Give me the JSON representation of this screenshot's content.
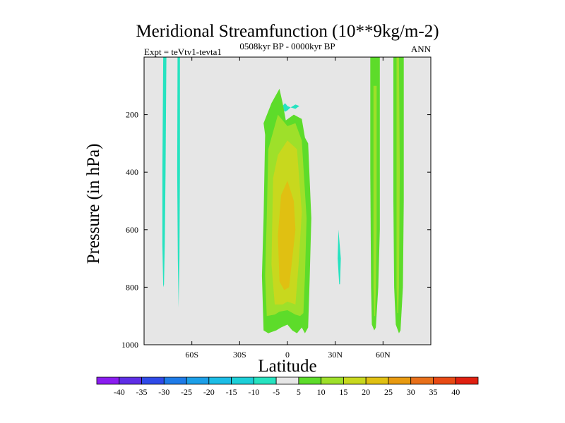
{
  "chart_data": {
    "type": "heatmap",
    "title": "Meridional Streamfunction (10**9kg/m-2)",
    "subtitle": "0508kyr BP - 0000kyr BP",
    "left_label": "Expt = teVtv1-tevta1",
    "right_label": "ANN",
    "xlabel": "Latitude",
    "ylabel": "Pressure (in hPa)",
    "xlim": [
      -90,
      90
    ],
    "ylim": [
      1000,
      0
    ],
    "x_ticks": [
      {
        "value": -60,
        "label": "60S"
      },
      {
        "value": -30,
        "label": "30S"
      },
      {
        "value": 0,
        "label": "0"
      },
      {
        "value": 30,
        "label": "30N"
      },
      {
        "value": 60,
        "label": "60N"
      }
    ],
    "y_ticks": [
      {
        "value": 200,
        "label": "200"
      },
      {
        "value": 400,
        "label": "400"
      },
      {
        "value": 600,
        "label": "600"
      },
      {
        "value": 800,
        "label": "800"
      },
      {
        "value": 1000,
        "label": "1000"
      }
    ],
    "background_color": "#e6e6e6",
    "colorbar": {
      "labels": [
        "-40",
        "-35",
        "-30",
        "-25",
        "-20",
        "-15",
        "-10",
        "-5",
        "5",
        "10",
        "15",
        "20",
        "25",
        "30",
        "35",
        "40"
      ],
      "colors": [
        "#8a1cf0",
        "#5e2ee6",
        "#2f4ae8",
        "#1e7be8",
        "#1c9fe8",
        "#1cbde6",
        "#1ccfd8",
        "#26e3c0",
        "#e6e6e6",
        "#5ddc2a",
        "#9ee02a",
        "#c8d81e",
        "#e0c012",
        "#e89a10",
        "#e8701a",
        "#e84a14",
        "#e02010"
      ]
    },
    "regions": [
      {
        "name": "negative-contour-60s-a",
        "level": -10,
        "color": "#26e3c0",
        "points": [
          [
            -78,
            0
          ],
          [
            -76,
            0
          ],
          [
            -76.5,
            400
          ],
          [
            -77,
            650
          ],
          [
            -77.5,
            790
          ],
          [
            -78,
            800
          ],
          [
            -78.5,
            650
          ],
          [
            -78.5,
            400
          ]
        ]
      },
      {
        "name": "negative-contour-60s-b",
        "level": -10,
        "color": "#26e3c0",
        "points": [
          [
            -69,
            0
          ],
          [
            -67.5,
            0
          ],
          [
            -67.5,
            400
          ],
          [
            -67.8,
            700
          ],
          [
            -68.3,
            870
          ],
          [
            -68.8,
            700
          ],
          [
            -69.2,
            400
          ]
        ]
      },
      {
        "name": "negative-contour-upper-blob",
        "level": -10,
        "color": "#26e3c0",
        "points": [
          [
            -3,
            170
          ],
          [
            -1.5,
            160
          ],
          [
            0,
            170
          ],
          [
            2,
            175
          ],
          [
            5,
            165
          ],
          [
            7.5,
            170
          ],
          [
            5,
            180
          ],
          [
            2,
            175
          ],
          [
            0,
            185
          ],
          [
            -1.5,
            190
          ],
          [
            -3,
            180
          ]
        ]
      },
      {
        "name": "negative-contour-30n",
        "level": -5,
        "color": "#26e3c0",
        "points": [
          [
            32,
            600
          ],
          [
            33.5,
            700
          ],
          [
            33,
            790
          ],
          [
            32.5,
            790
          ],
          [
            31.5,
            700
          ]
        ]
      },
      {
        "name": "positive-contour-5-tropics",
        "level": 5,
        "color": "#5ddc2a",
        "points": [
          [
            -15,
            230
          ],
          [
            -10,
            160
          ],
          [
            -5,
            110
          ],
          [
            -3,
            160
          ],
          [
            -1,
            220
          ],
          [
            4,
            200
          ],
          [
            9,
            215
          ],
          [
            11,
            280
          ],
          [
            13,
            300
          ],
          [
            15,
            560
          ],
          [
            14,
            760
          ],
          [
            13,
            940
          ],
          [
            11,
            960
          ],
          [
            9,
            940
          ],
          [
            6,
            960
          ],
          [
            3,
            950
          ],
          [
            0,
            930
          ],
          [
            -4,
            940
          ],
          [
            -7,
            950
          ],
          [
            -12,
            960
          ],
          [
            -15,
            950
          ],
          [
            -16,
            760
          ],
          [
            -15,
            560
          ],
          [
            -14,
            270
          ]
        ]
      },
      {
        "name": "positive-contour-10-tropics",
        "level": 10,
        "color": "#9ee02a",
        "points": [
          [
            -10,
            280
          ],
          [
            -6,
            200
          ],
          [
            0,
            240
          ],
          [
            5,
            230
          ],
          [
            9,
            290
          ],
          [
            12,
            560
          ],
          [
            11,
            760
          ],
          [
            10,
            890
          ],
          [
            8,
            900
          ],
          [
            5,
            895
          ],
          [
            0,
            880
          ],
          [
            -5,
            885
          ],
          [
            -8,
            895
          ],
          [
            -13,
            900
          ],
          [
            -14,
            760
          ],
          [
            -13,
            560
          ],
          [
            -12,
            320
          ]
        ]
      },
      {
        "name": "positive-contour-15-tropics",
        "level": 15,
        "color": "#c8d81e",
        "points": [
          [
            -6,
            340
          ],
          [
            0,
            290
          ],
          [
            6,
            320
          ],
          [
            9,
            540
          ],
          [
            7,
            720
          ],
          [
            5,
            860
          ],
          [
            0,
            850
          ],
          [
            -3,
            860
          ],
          [
            -8,
            860
          ],
          [
            -10,
            720
          ],
          [
            -9,
            420
          ]
        ]
      },
      {
        "name": "positive-contour-20-tropics",
        "level": 20,
        "color": "#e0c012",
        "points": [
          [
            -4,
            480
          ],
          [
            0,
            430
          ],
          [
            4,
            500
          ],
          [
            5,
            600
          ],
          [
            1,
            800
          ],
          [
            -2,
            810
          ],
          [
            -5,
            780
          ],
          [
            -6,
            620
          ]
        ]
      },
      {
        "name": "positive-contour-5-60n-a",
        "level": 5,
        "color": "#5ddc2a",
        "points": [
          [
            52,
            0
          ],
          [
            58,
            0
          ],
          [
            58,
            600
          ],
          [
            57,
            800
          ],
          [
            55.5,
            940
          ],
          [
            54.5,
            950
          ],
          [
            53,
            930
          ],
          [
            52.5,
            800
          ],
          [
            52,
            400
          ]
        ]
      },
      {
        "name": "positive-contour-10-60n-a",
        "level": 10,
        "color": "#9ee02a",
        "points": [
          [
            54,
            100
          ],
          [
            56,
            100
          ],
          [
            56,
            600
          ],
          [
            55.5,
            800
          ],
          [
            55,
            900
          ],
          [
            54.5,
            900
          ],
          [
            54,
            800
          ]
        ]
      },
      {
        "name": "positive-contour-5-60n-b",
        "level": 5,
        "color": "#5ddc2a",
        "points": [
          [
            66.5,
            0
          ],
          [
            73,
            0
          ],
          [
            73,
            500
          ],
          [
            72.5,
            800
          ],
          [
            71,
            950
          ],
          [
            70,
            960
          ],
          [
            68,
            930
          ],
          [
            67,
            800
          ],
          [
            66.5,
            500
          ]
        ]
      },
      {
        "name": "positive-contour-10-60n-b",
        "level": 10,
        "color": "#9ee02a",
        "points": [
          [
            68.5,
            0
          ],
          [
            70,
            0
          ],
          [
            70.5,
            400
          ],
          [
            70,
            800
          ],
          [
            69.5,
            890
          ],
          [
            69,
            890
          ],
          [
            68.5,
            800
          ]
        ]
      }
    ]
  }
}
